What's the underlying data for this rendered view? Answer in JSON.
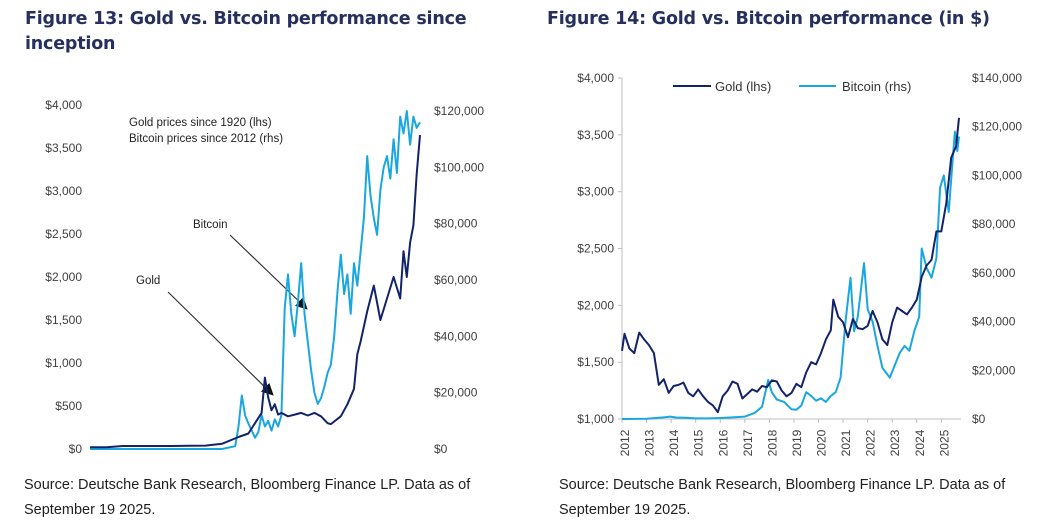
{
  "colors": {
    "gold": "#13236a",
    "bitcoin": "#1aa7e0",
    "title": "#26305f",
    "axis": "#bfbfbf"
  },
  "chart_data": [
    {
      "id": "fig13",
      "type": "line",
      "title": "Figure 13: Gold vs. Bitcoin performance since inception",
      "source": "Source: Deutsche Bank Research, Bloomberg Finance LP. Data as of September 19 2025.",
      "source_line1": "Source: Deutsche Bank Research, Bloomberg Finance LP. Data as of",
      "source_line2": "September 19 2025.",
      "annotation_lines": [
        "Gold prices since 1920 (lhs)",
        "Bitcoin prices since 2012 (rhs)"
      ],
      "arrow_labels": [
        "Bitcoin",
        "Gold"
      ],
      "y_left": {
        "ticks": [
          "$0",
          "$500",
          "$1,000",
          "$1,500",
          "$2,000",
          "$2,500",
          "$3,000",
          "$3,500",
          "$4,000"
        ],
        "range": [
          0,
          4000
        ]
      },
      "y_right": {
        "ticks": [
          "$0",
          "$20,000",
          "$40,000",
          "$60,000",
          "$80,000",
          "$100,000",
          "$120,000"
        ],
        "range": [
          0,
          120000
        ]
      },
      "x_ticks": [],
      "grid": false,
      "series": [
        {
          "name": "Gold",
          "axis": "left",
          "x": [
            0,
            5,
            10,
            15,
            20,
            25,
            30,
            35,
            40,
            45,
            48,
            50,
            52,
            53,
            54,
            55,
            56,
            57,
            58,
            60,
            62,
            64,
            66,
            68,
            70,
            72,
            73,
            74,
            76,
            78,
            80,
            81,
            82,
            84,
            86,
            88,
            90,
            92,
            94,
            95,
            96,
            97,
            98,
            99,
            100
          ],
          "values": [
            20,
            20,
            35,
            35,
            35,
            35,
            38,
            40,
            60,
            140,
            180,
            300,
            420,
            830,
            600,
            450,
            520,
            400,
            420,
            380,
            400,
            420,
            390,
            420,
            380,
            300,
            290,
            320,
            380,
            520,
            700,
            1100,
            1250,
            1600,
            1900,
            1500,
            1750,
            2000,
            1750,
            2300,
            2000,
            2400,
            2600,
            3200,
            3650
          ]
        },
        {
          "name": "Bitcoin",
          "axis": "right",
          "x": [
            0,
            40,
            44,
            45,
            46,
            47,
            48,
            50,
            51,
            52,
            53,
            54,
            55,
            56,
            57,
            58,
            59,
            60,
            61,
            62,
            63,
            64,
            65,
            66,
            67,
            68,
            69,
            70,
            71,
            72,
            73,
            74,
            75,
            76,
            77,
            78,
            79,
            80,
            81,
            82,
            83,
            84,
            85,
            86,
            87,
            88,
            89,
            90,
            91,
            92,
            93,
            94,
            95,
            96,
            97,
            98,
            99,
            100
          ],
          "values": [
            0,
            0,
            1000,
            8000,
            19000,
            12000,
            9000,
            4000,
            6000,
            12000,
            8000,
            10000,
            6500,
            10500,
            8000,
            12000,
            50000,
            62000,
            48000,
            40000,
            52000,
            66000,
            48000,
            38000,
            28000,
            20000,
            16000,
            18000,
            22000,
            27000,
            30000,
            40000,
            56000,
            69000,
            55000,
            62000,
            48000,
            66000,
            58000,
            70000,
            82000,
            104000,
            90000,
            82000,
            76000,
            92000,
            100000,
            104000,
            96000,
            110000,
            98000,
            118000,
            112000,
            120000,
            108000,
            118000,
            114000,
            116000
          ]
        }
      ]
    },
    {
      "id": "fig14",
      "type": "line",
      "title": "Figure 14: Gold vs. Bitcoin performance (in $)",
      "source": "Source: Deutsche Bank Research, Bloomberg Finance LP. Data as of September 19 2025.",
      "source_line1": "Source: Deutsche Bank Research, Bloomberg Finance LP. Data as of",
      "source_line2": "September 19 2025.",
      "legend": {
        "position": "top-center",
        "entries": [
          "Gold (lhs)",
          "Bitcoin (rhs)"
        ]
      },
      "y_left": {
        "ticks": [
          "$1,000",
          "$1,500",
          "$2,000",
          "$2,500",
          "$3,000",
          "$3,500",
          "$4,000"
        ],
        "range": [
          1000,
          4000
        ]
      },
      "y_right": {
        "ticks": [
          "$0",
          "$20,000",
          "$40,000",
          "$60,000",
          "$80,000",
          "$100,000",
          "$120,000",
          "$140,000"
        ],
        "range": [
          0,
          140000
        ]
      },
      "x_ticks": [
        "2012",
        "2013",
        "2014",
        "2015",
        "2016",
        "2017",
        "2018",
        "2019",
        "2020",
        "2021",
        "2022",
        "2023",
        "2024",
        "2025"
      ],
      "x_range": [
        2012,
        2025.8
      ],
      "grid": false,
      "series": [
        {
          "name": "Gold",
          "axis": "left",
          "x": [
            2012.0,
            2012.1,
            2012.3,
            2012.5,
            2012.7,
            2012.9,
            2013.1,
            2013.3,
            2013.5,
            2013.7,
            2013.9,
            2014.1,
            2014.3,
            2014.5,
            2014.7,
            2014.9,
            2015.1,
            2015.3,
            2015.5,
            2015.7,
            2015.9,
            2016.1,
            2016.3,
            2016.5,
            2016.7,
            2016.9,
            2017.1,
            2017.3,
            2017.5,
            2017.7,
            2017.9,
            2018.1,
            2018.3,
            2018.5,
            2018.7,
            2018.9,
            2019.1,
            2019.3,
            2019.5,
            2019.7,
            2019.9,
            2020.1,
            2020.3,
            2020.5,
            2020.6,
            2020.8,
            2021.0,
            2021.2,
            2021.4,
            2021.6,
            2021.8,
            2022.0,
            2022.2,
            2022.4,
            2022.6,
            2022.8,
            2023.0,
            2023.2,
            2023.4,
            2023.6,
            2023.8,
            2024.0,
            2024.2,
            2024.4,
            2024.6,
            2024.8,
            2025.0,
            2025.2,
            2025.4,
            2025.6,
            2025.72
          ],
          "values": [
            1600,
            1750,
            1620,
            1580,
            1760,
            1700,
            1650,
            1580,
            1300,
            1350,
            1230,
            1290,
            1300,
            1320,
            1230,
            1200,
            1260,
            1200,
            1150,
            1120,
            1060,
            1200,
            1250,
            1330,
            1310,
            1180,
            1220,
            1260,
            1240,
            1290,
            1280,
            1340,
            1330,
            1250,
            1200,
            1230,
            1310,
            1280,
            1410,
            1500,
            1480,
            1580,
            1700,
            1780,
            2050,
            1900,
            1850,
            1720,
            1880,
            1800,
            1790,
            1820,
            1950,
            1850,
            1700,
            1650,
            1850,
            1980,
            1950,
            1920,
            1980,
            2050,
            2250,
            2350,
            2400,
            2650,
            2650,
            2900,
            3300,
            3400,
            3650
          ]
        },
        {
          "name": "Bitcoin",
          "axis": "right",
          "x": [
            2012.0,
            2013.0,
            2013.8,
            2013.95,
            2014.2,
            2014.6,
            2015.0,
            2015.5,
            2016.0,
            2016.5,
            2017.0,
            2017.4,
            2017.7,
            2017.95,
            2018.1,
            2018.3,
            2018.6,
            2018.9,
            2019.1,
            2019.3,
            2019.5,
            2019.7,
            2019.9,
            2020.1,
            2020.3,
            2020.5,
            2020.7,
            2020.9,
            2021.1,
            2021.3,
            2021.45,
            2021.6,
            2021.85,
            2022.0,
            2022.2,
            2022.4,
            2022.6,
            2022.9,
            2023.1,
            2023.3,
            2023.5,
            2023.7,
            2023.9,
            2024.1,
            2024.2,
            2024.4,
            2024.6,
            2024.8,
            2024.95,
            2025.1,
            2025.3,
            2025.45,
            2025.55,
            2025.65,
            2025.72
          ],
          "values": [
            0,
            100,
            800,
            1000,
            600,
            500,
            250,
            250,
            400,
            650,
            1000,
            2500,
            5000,
            16000,
            11000,
            8000,
            7000,
            4000,
            3800,
            5500,
            11000,
            9500,
            7500,
            8500,
            7000,
            9500,
            11000,
            17000,
            40000,
            58000,
            36000,
            42000,
            64000,
            45000,
            40000,
            30000,
            21000,
            17000,
            22000,
            27000,
            30000,
            28000,
            36000,
            42000,
            70000,
            62000,
            58000,
            66000,
            95000,
            100000,
            85000,
            105000,
            118000,
            110000,
            116000
          ]
        }
      ]
    }
  ]
}
